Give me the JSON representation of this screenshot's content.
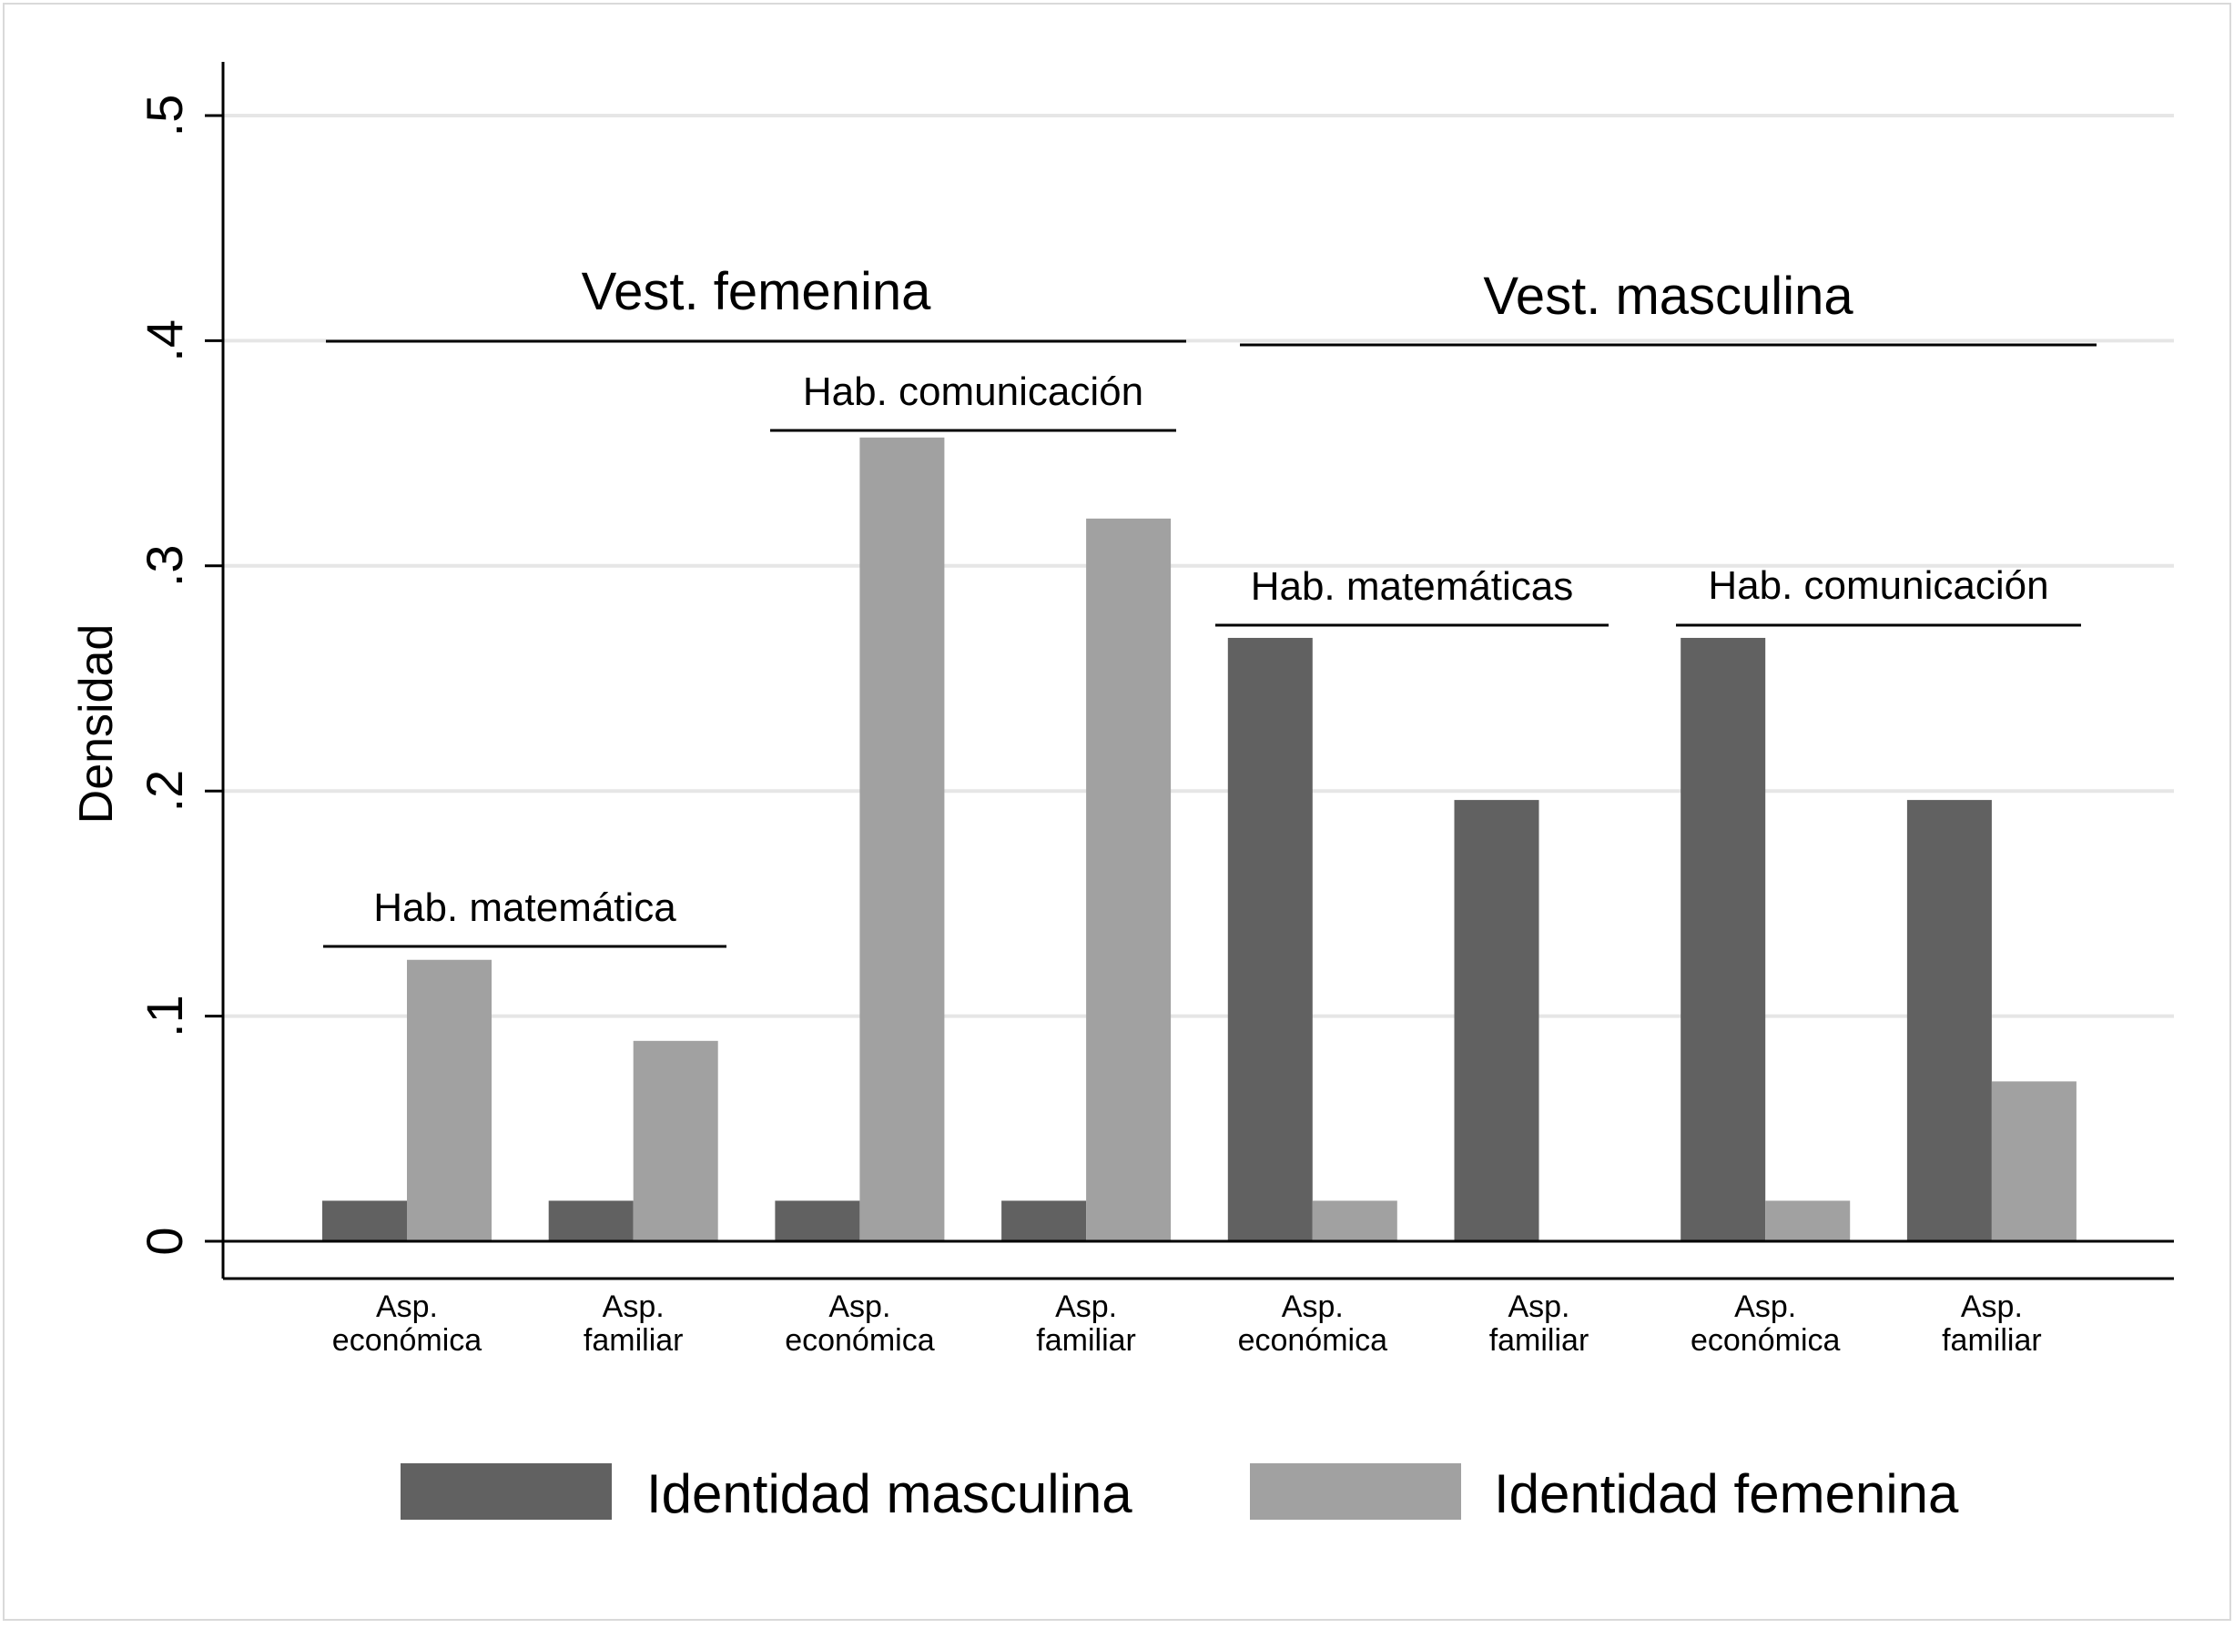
{
  "chart_data": {
    "type": "bar",
    "title": "",
    "xlabel": "",
    "ylabel": "Densidad",
    "ylim": [
      0,
      0.5
    ],
    "yticks": [
      0,
      0.1,
      0.2,
      0.3,
      0.4,
      0.5
    ],
    "ytick_labels": [
      "0",
      ".1",
      ".2",
      ".3",
      ".4",
      ".5"
    ],
    "grid": true,
    "legend_position": "bottom",
    "categories": [
      {
        "line1": "Asp.",
        "line2": "económica"
      },
      {
        "line1": "Asp.",
        "line2": "familiar"
      },
      {
        "line1": "Asp.",
        "line2": "económica"
      },
      {
        "line1": "Asp.",
        "line2": "familiar"
      },
      {
        "line1": "Asp.",
        "line2": "económica"
      },
      {
        "line1": "Asp.",
        "line2": "familiar"
      },
      {
        "line1": "Asp.",
        "line2": "económica"
      },
      {
        "line1": "Asp.",
        "line2": "familiar"
      }
    ],
    "series": [
      {
        "name": "Identidad masculina",
        "color": "#616161",
        "values": [
          0.018,
          0.018,
          0.018,
          0.018,
          0.268,
          0.196,
          0.268,
          0.196
        ]
      },
      {
        "name": "Identidad femenina",
        "color": "#a1a1a1",
        "values": [
          0.125,
          0.089,
          0.357,
          0.321,
          0.018,
          0.0,
          0.018,
          0.071
        ]
      }
    ],
    "annotations": {
      "groups": [
        {
          "label": "Vest. femenina",
          "from": 0,
          "to": 3
        },
        {
          "label": "Vest. masculina",
          "from": 4,
          "to": 7
        }
      ],
      "subgroups": [
        {
          "label": "Hab. matemática",
          "from": 0,
          "to": 1
        },
        {
          "label": "Hab. comunicación",
          "from": 2,
          "to": 3
        },
        {
          "label": "Hab. matemáticas",
          "from": 4,
          "to": 5
        },
        {
          "label": "Hab. comunicación",
          "from": 6,
          "to": 7
        }
      ]
    }
  }
}
